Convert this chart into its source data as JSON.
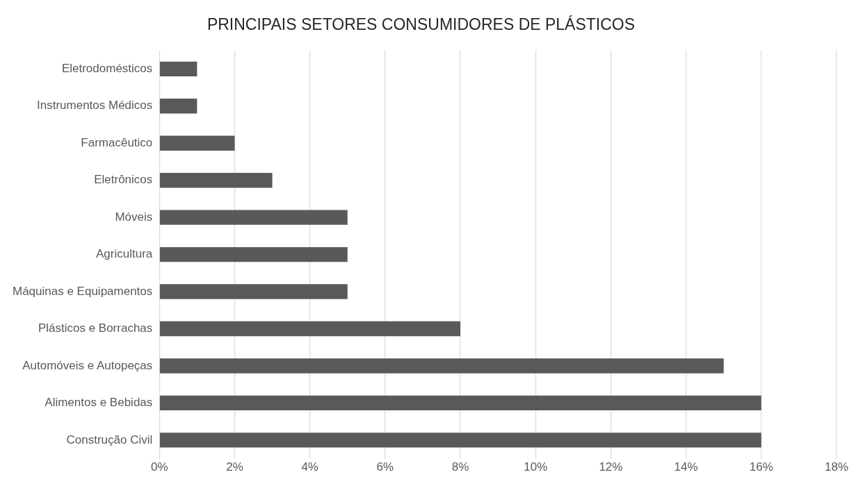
{
  "chart_data": {
    "type": "bar",
    "orientation": "horizontal",
    "title": "PRINCIPAIS SETORES CONSUMIDORES DE PLÁSTICOS",
    "categories": [
      "Eletrodomésticos",
      "Instrumentos Médicos",
      "Farmacêutico",
      "Eletrônicos",
      "Móveis",
      "Agricultura",
      "Máquinas e Equipamentos",
      "Plásticos e Borrachas",
      "Automóveis e Autopeças",
      "Alimentos e Bebidas",
      "Construção Civil"
    ],
    "values": [
      1,
      1,
      2,
      3,
      5,
      5,
      5,
      8,
      15,
      16,
      16
    ],
    "color": "#595959",
    "xlim": [
      0,
      18
    ],
    "xticks": [
      {
        "value": 0,
        "label": "0%"
      },
      {
        "value": 2,
        "label": "2%"
      },
      {
        "value": 4,
        "label": "4%"
      },
      {
        "value": 6,
        "label": "6%"
      },
      {
        "value": 8,
        "label": "8%"
      },
      {
        "value": 10,
        "label": "10%"
      },
      {
        "value": 12,
        "label": "12%"
      },
      {
        "value": 14,
        "label": "14%"
      },
      {
        "value": 16,
        "label": "16%"
      },
      {
        "value": 18,
        "label": "18%"
      }
    ],
    "grid": "x",
    "legend": false
  }
}
